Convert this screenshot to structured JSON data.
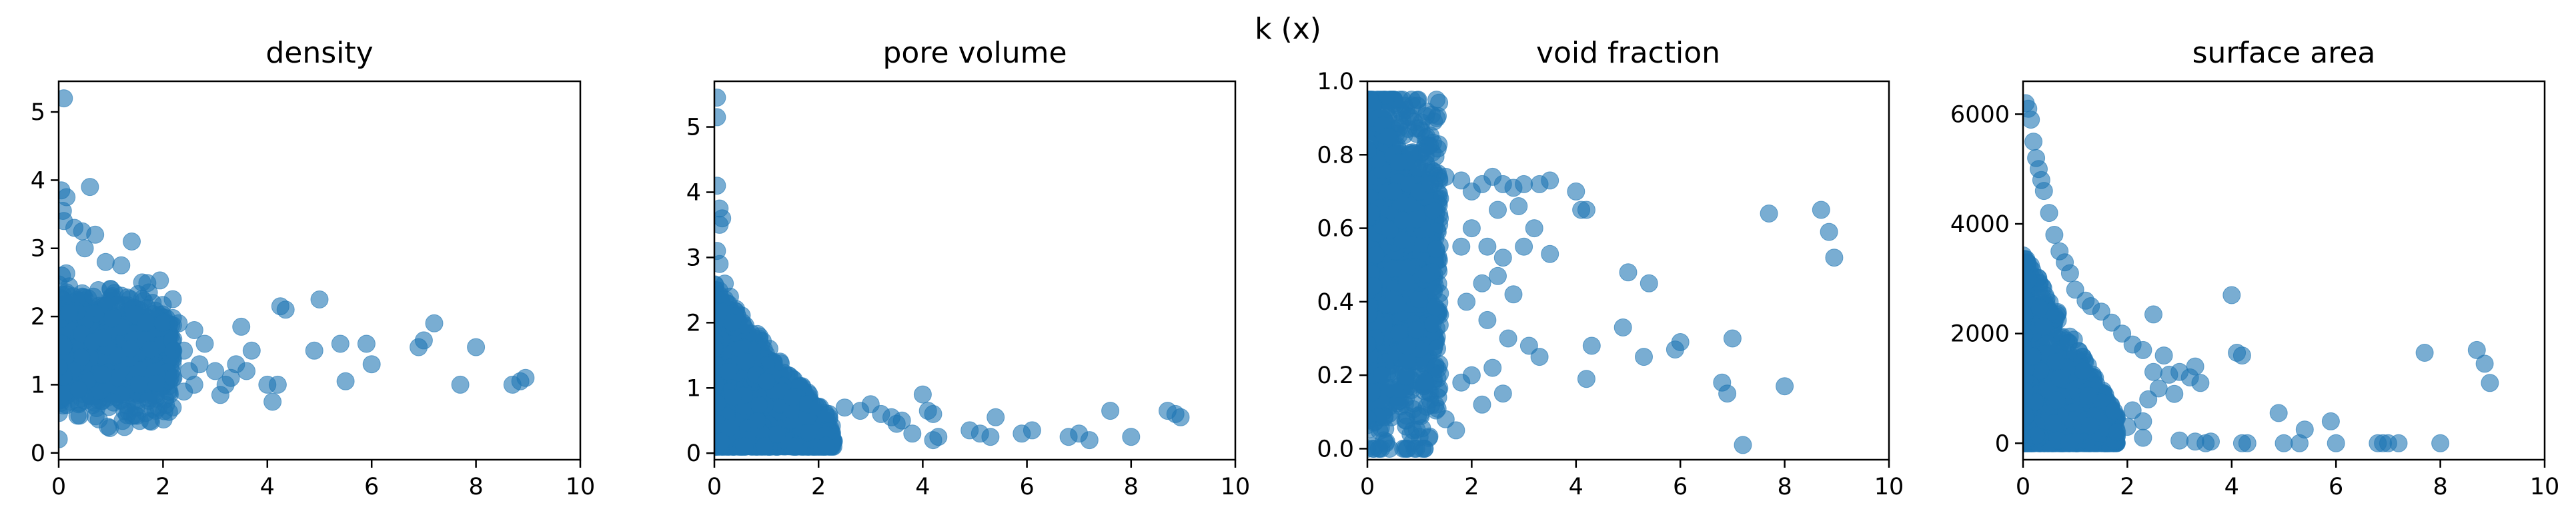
{
  "figure": {
    "suptitle": "k (x)"
  },
  "chart_data": [
    {
      "type": "scatter",
      "title": "density",
      "xlabel": "",
      "ylabel": "",
      "xlim": [
        0,
        10
      ],
      "ylim": [
        -0.1,
        5.45
      ],
      "xticks": [
        0,
        2,
        4,
        6,
        8,
        10
      ],
      "yticks": [
        0,
        1,
        2,
        3,
        4,
        5
      ],
      "marker_color": "#1f77b4",
      "marker_alpha": 0.6,
      "cloud": {
        "n": 1400,
        "x_max": 2.2,
        "y_center": 1.45,
        "y_spread": 0.75,
        "y_min": 0.2,
        "y_max": 3.0
      },
      "points": [
        [
          0.1,
          5.2
        ],
        [
          0.05,
          3.85
        ],
        [
          0.15,
          3.75
        ],
        [
          0.08,
          3.55
        ],
        [
          0.6,
          3.9
        ],
        [
          0.1,
          3.4
        ],
        [
          0.3,
          3.3
        ],
        [
          0.45,
          3.25
        ],
        [
          0.7,
          3.2
        ],
        [
          1.4,
          3.1
        ],
        [
          0.5,
          3.0
        ],
        [
          0.9,
          2.8
        ],
        [
          1.2,
          2.75
        ],
        [
          1.6,
          2.5
        ],
        [
          1.0,
          2.4
        ],
        [
          1.8,
          2.2
        ],
        [
          2.0,
          1.9
        ],
        [
          2.3,
          1.9
        ],
        [
          2.6,
          1.8
        ],
        [
          2.8,
          1.6
        ],
        [
          2.4,
          1.5
        ],
        [
          2.5,
          1.2
        ],
        [
          2.2,
          1.1
        ],
        [
          2.6,
          1.0
        ],
        [
          2.4,
          0.9
        ],
        [
          2.7,
          1.3
        ],
        [
          3.0,
          1.2
        ],
        [
          3.2,
          1.0
        ],
        [
          3.3,
          1.1
        ],
        [
          3.1,
          0.85
        ],
        [
          3.4,
          1.3
        ],
        [
          3.6,
          1.2
        ],
        [
          3.5,
          1.85
        ],
        [
          3.7,
          1.5
        ],
        [
          4.0,
          1.0
        ],
        [
          4.2,
          1.0
        ],
        [
          4.1,
          0.75
        ],
        [
          4.25,
          2.15
        ],
        [
          4.35,
          2.1
        ],
        [
          4.9,
          1.5
        ],
        [
          5.0,
          2.25
        ],
        [
          5.4,
          1.6
        ],
        [
          5.5,
          1.05
        ],
        [
          5.9,
          1.6
        ],
        [
          6.0,
          1.3
        ],
        [
          6.9,
          1.55
        ],
        [
          7.0,
          1.65
        ],
        [
          7.2,
          1.9
        ],
        [
          7.7,
          1.0
        ],
        [
          8.0,
          1.55
        ],
        [
          8.7,
          1.0
        ],
        [
          8.85,
          1.05
        ],
        [
          8.95,
          1.1
        ]
      ]
    },
    {
      "type": "scatter",
      "title": "pore volume",
      "xlabel": "",
      "ylabel": "",
      "xlim": [
        0,
        10
      ],
      "ylim": [
        -0.1,
        5.7
      ],
      "xticks": [
        0,
        2,
        4,
        6,
        8,
        10
      ],
      "yticks": [
        0,
        1,
        2,
        3,
        4,
        5
      ],
      "marker_color": "#1f77b4",
      "marker_alpha": 0.6,
      "cloud": {
        "n": 1400,
        "x_max": 2.3,
        "y_decay": true,
        "y_min": 0.1,
        "y_max": 2.6
      },
      "points": [
        [
          0.05,
          5.45
        ],
        [
          0.05,
          5.15
        ],
        [
          0.05,
          4.1
        ],
        [
          0.1,
          3.75
        ],
        [
          0.15,
          3.6
        ],
        [
          0.1,
          3.5
        ],
        [
          0.05,
          3.1
        ],
        [
          0.1,
          2.9
        ],
        [
          0.2,
          2.6
        ],
        [
          0.3,
          2.4
        ],
        [
          0.4,
          2.1
        ],
        [
          0.35,
          2.0
        ],
        [
          0.5,
          1.6
        ],
        [
          0.6,
          1.4
        ],
        [
          0.8,
          1.2
        ],
        [
          1.0,
          1.1
        ],
        [
          1.3,
          0.95
        ],
        [
          1.5,
          0.85
        ],
        [
          1.8,
          0.75
        ],
        [
          2.0,
          0.7
        ],
        [
          2.2,
          0.6
        ],
        [
          2.5,
          0.7
        ],
        [
          2.8,
          0.65
        ],
        [
          3.0,
          0.75
        ],
        [
          3.2,
          0.6
        ],
        [
          3.4,
          0.55
        ],
        [
          3.5,
          0.45
        ],
        [
          3.6,
          0.5
        ],
        [
          3.8,
          0.3
        ],
        [
          4.0,
          0.9
        ],
        [
          4.1,
          0.65
        ],
        [
          4.2,
          0.6
        ],
        [
          4.3,
          0.25
        ],
        [
          4.2,
          0.2
        ],
        [
          4.9,
          0.35
        ],
        [
          5.1,
          0.3
        ],
        [
          5.3,
          0.25
        ],
        [
          5.4,
          0.55
        ],
        [
          5.9,
          0.3
        ],
        [
          6.1,
          0.35
        ],
        [
          6.8,
          0.25
        ],
        [
          7.0,
          0.3
        ],
        [
          7.2,
          0.2
        ],
        [
          7.6,
          0.65
        ],
        [
          8.0,
          0.25
        ],
        [
          8.7,
          0.65
        ],
        [
          8.85,
          0.6
        ],
        [
          8.95,
          0.55
        ]
      ]
    },
    {
      "type": "scatter",
      "title": "void fraction",
      "xlabel": "",
      "ylabel": "",
      "xlim": [
        0,
        10
      ],
      "ylim": [
        -0.03,
        1.0
      ],
      "xticks": [
        0,
        2,
        4,
        6,
        8,
        10
      ],
      "yticks": [
        0.0,
        0.2,
        0.4,
        0.6,
        0.8,
        1.0
      ],
      "marker_color": "#1f77b4",
      "marker_alpha": 0.6,
      "cloud": {
        "n": 1500,
        "x_max": 1.4,
        "y_center": 0.5,
        "y_spread": 0.45,
        "y_min": 0.0,
        "y_max": 0.95
      },
      "points": [
        [
          0.05,
          0.95
        ],
        [
          0.1,
          0.93
        ],
        [
          0.2,
          0.9
        ],
        [
          0.3,
          0.88
        ],
        [
          0.4,
          0.85
        ],
        [
          0.5,
          0.8
        ],
        [
          0.6,
          0.78
        ],
        [
          0.8,
          0.72
        ],
        [
          1.0,
          0.7
        ],
        [
          1.2,
          0.72
        ],
        [
          1.5,
          0.74
        ],
        [
          1.8,
          0.73
        ],
        [
          2.0,
          0.7
        ],
        [
          2.2,
          0.72
        ],
        [
          2.4,
          0.74
        ],
        [
          2.6,
          0.72
        ],
        [
          2.8,
          0.71
        ],
        [
          3.0,
          0.72
        ],
        [
          3.3,
          0.72
        ],
        [
          3.5,
          0.73
        ],
        [
          2.9,
          0.66
        ],
        [
          2.5,
          0.65
        ],
        [
          3.2,
          0.6
        ],
        [
          2.0,
          0.6
        ],
        [
          1.8,
          0.55
        ],
        [
          2.3,
          0.55
        ],
        [
          2.6,
          0.52
        ],
        [
          3.0,
          0.55
        ],
        [
          3.5,
          0.53
        ],
        [
          2.5,
          0.47
        ],
        [
          2.2,
          0.45
        ],
        [
          2.8,
          0.42
        ],
        [
          1.9,
          0.4
        ],
        [
          2.3,
          0.35
        ],
        [
          2.7,
          0.3
        ],
        [
          3.1,
          0.28
        ],
        [
          3.3,
          0.25
        ],
        [
          2.4,
          0.22
        ],
        [
          2.0,
          0.2
        ],
        [
          2.6,
          0.15
        ],
        [
          1.8,
          0.18
        ],
        [
          2.2,
          0.12
        ],
        [
          1.5,
          0.08
        ],
        [
          1.7,
          0.05
        ],
        [
          4.0,
          0.7
        ],
        [
          4.1,
          0.65
        ],
        [
          4.2,
          0.65
        ],
        [
          4.3,
          0.28
        ],
        [
          4.2,
          0.19
        ],
        [
          4.9,
          0.33
        ],
        [
          5.0,
          0.48
        ],
        [
          5.4,
          0.45
        ],
        [
          5.3,
          0.25
        ],
        [
          5.9,
          0.27
        ],
        [
          6.0,
          0.29
        ],
        [
          6.8,
          0.18
        ],
        [
          6.9,
          0.15
        ],
        [
          7.0,
          0.3
        ],
        [
          7.2,
          0.01
        ],
        [
          7.7,
          0.64
        ],
        [
          8.0,
          0.17
        ],
        [
          8.7,
          0.65
        ],
        [
          8.85,
          0.59
        ],
        [
          8.95,
          0.52
        ]
      ]
    },
    {
      "type": "scatter",
      "title": "surface area",
      "xlabel": "",
      "ylabel": "",
      "xlim": [
        0,
        10
      ],
      "ylim": [
        -300,
        6600
      ],
      "xticks": [
        0,
        2,
        4,
        6,
        8,
        10
      ],
      "yticks": [
        0,
        2000,
        4000,
        6000
      ],
      "marker_color": "#1f77b4",
      "marker_alpha": 0.6,
      "cloud": {
        "n": 1400,
        "x_max": 1.8,
        "y_decay": true,
        "y_min": 0,
        "y_max": 3500
      },
      "points": [
        [
          0.05,
          6200
        ],
        [
          0.1,
          6100
        ],
        [
          0.15,
          5900
        ],
        [
          0.2,
          5500
        ],
        [
          0.25,
          5200
        ],
        [
          0.3,
          5000
        ],
        [
          0.35,
          4800
        ],
        [
          0.4,
          4600
        ],
        [
          0.5,
          4200
        ],
        [
          0.6,
          3800
        ],
        [
          0.7,
          3500
        ],
        [
          0.8,
          3300
        ],
        [
          0.9,
          3100
        ],
        [
          1.0,
          2800
        ],
        [
          1.2,
          2600
        ],
        [
          1.3,
          2500
        ],
        [
          1.5,
          2400
        ],
        [
          1.7,
          2200
        ],
        [
          1.9,
          2000
        ],
        [
          2.1,
          1800
        ],
        [
          2.3,
          1700
        ],
        [
          2.5,
          2350
        ],
        [
          2.7,
          1600
        ],
        [
          2.5,
          1300
        ],
        [
          2.8,
          1250
        ],
        [
          3.0,
          1300
        ],
        [
          3.2,
          1200
        ],
        [
          3.4,
          1100
        ],
        [
          3.3,
          1400
        ],
        [
          2.6,
          1000
        ],
        [
          2.9,
          900
        ],
        [
          2.4,
          800
        ],
        [
          2.1,
          600
        ],
        [
          2.3,
          400
        ],
        [
          2.0,
          300
        ],
        [
          1.8,
          200
        ],
        [
          2.3,
          100
        ],
        [
          3.0,
          50
        ],
        [
          3.3,
          30
        ],
        [
          3.6,
          30
        ],
        [
          3.5,
          0
        ],
        [
          4.0,
          2700
        ],
        [
          4.1,
          1650
        ],
        [
          4.2,
          1600
        ],
        [
          4.3,
          0
        ],
        [
          4.2,
          0
        ],
        [
          4.9,
          550
        ],
        [
          5.0,
          0
        ],
        [
          5.3,
          0
        ],
        [
          5.4,
          250
        ],
        [
          5.9,
          400
        ],
        [
          6.0,
          0
        ],
        [
          6.8,
          0
        ],
        [
          6.9,
          0
        ],
        [
          7.0,
          0
        ],
        [
          7.2,
          0
        ],
        [
          7.7,
          1650
        ],
        [
          8.0,
          0
        ],
        [
          8.7,
          1700
        ],
        [
          8.85,
          1450
        ],
        [
          8.95,
          1100
        ]
      ]
    }
  ]
}
